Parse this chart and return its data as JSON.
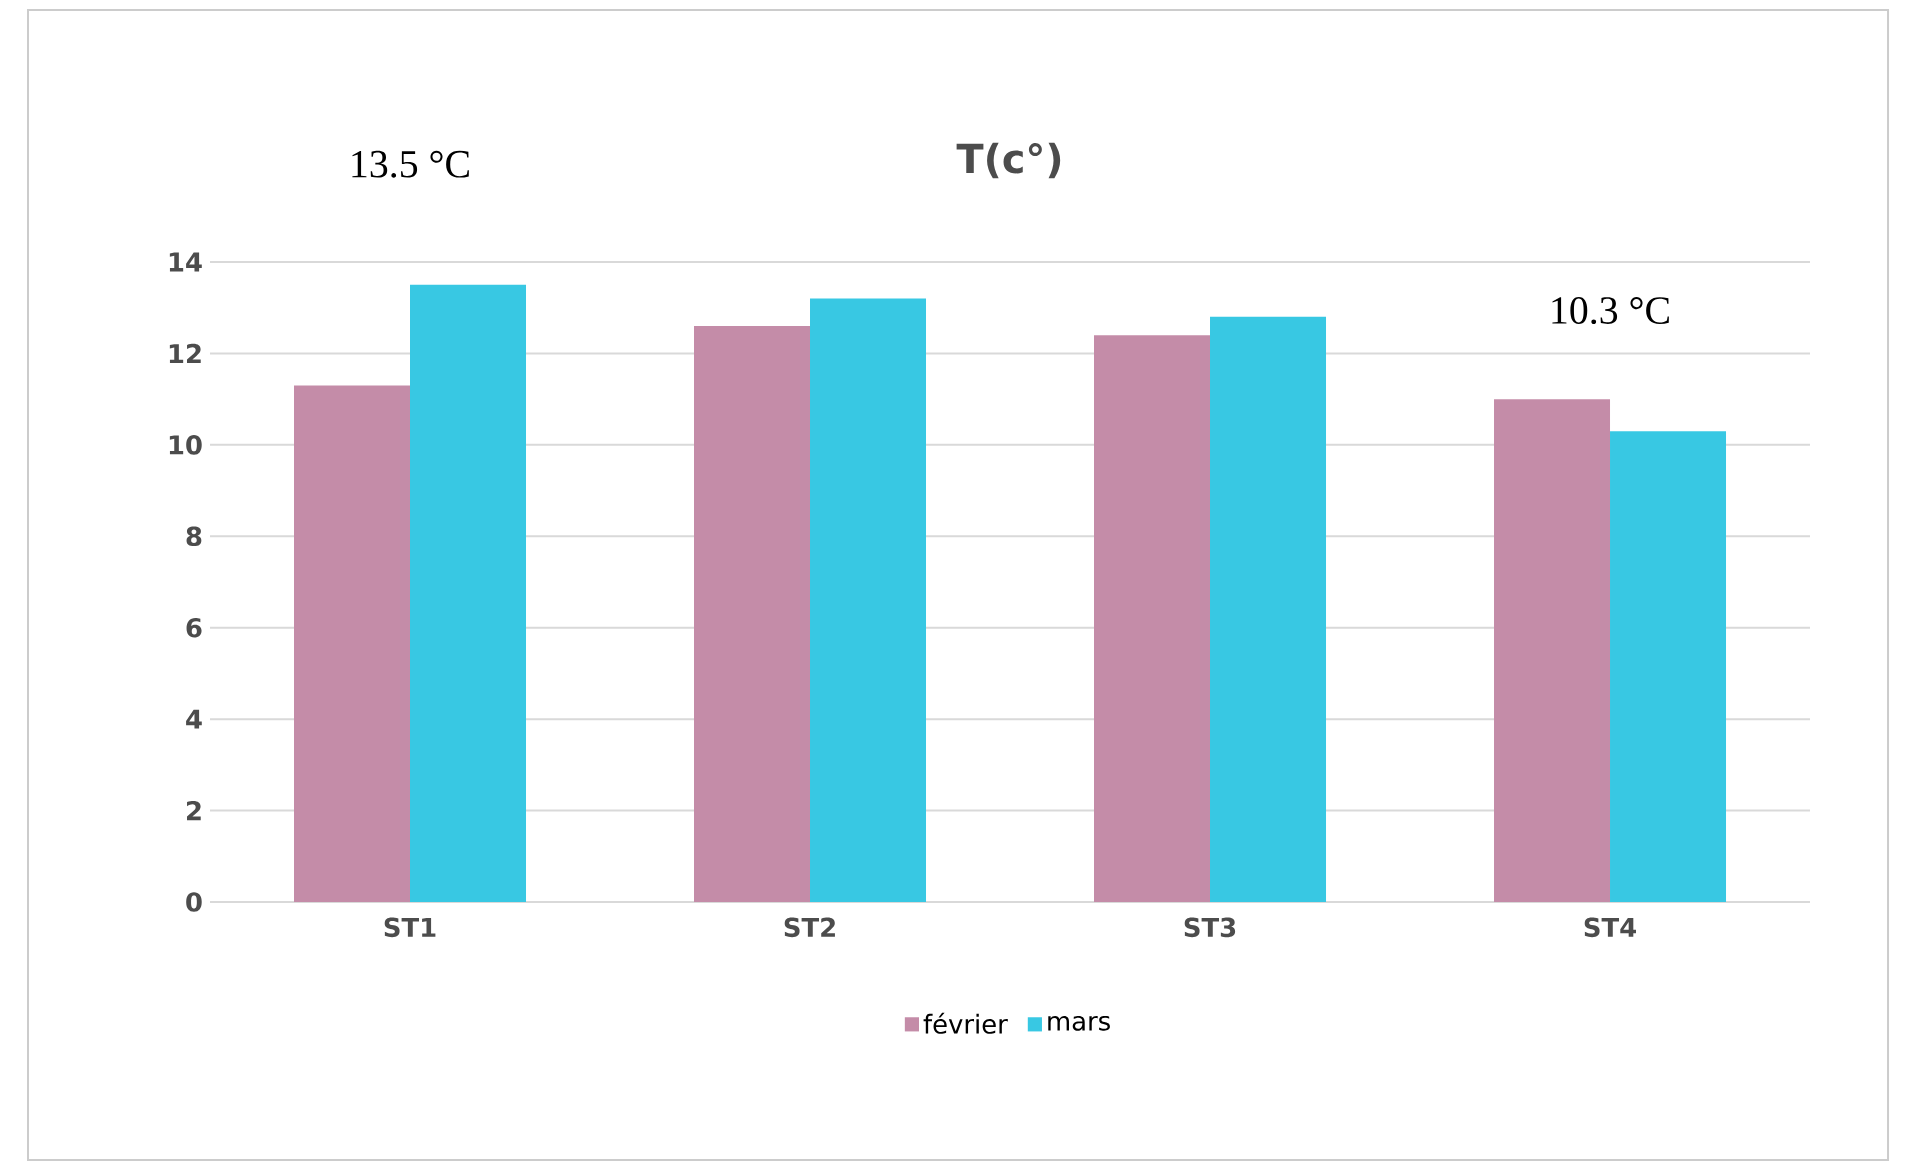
{
  "chart_data": {
    "type": "bar",
    "title": "T(c°)",
    "categories": [
      "ST1",
      "ST2",
      "ST3",
      "ST4"
    ],
    "series": [
      {
        "name": "février",
        "color": "#c48ca8",
        "values": [
          11.3,
          12.6,
          12.4,
          11.0
        ]
      },
      {
        "name": "mars",
        "color": "#38c8e3",
        "values": [
          13.5,
          13.2,
          12.8,
          10.3
        ]
      }
    ],
    "ylim": [
      0,
      14
    ],
    "yticks": [
      0,
      2,
      4,
      6,
      8,
      10,
      12,
      14
    ],
    "grid": "y",
    "legend": "bottom",
    "annotations": [
      {
        "text": "13.5 °C",
        "x": "ST1",
        "y": 13.5
      },
      {
        "text": "10.3 °C",
        "x": "ST4",
        "y": 10.3
      }
    ]
  }
}
